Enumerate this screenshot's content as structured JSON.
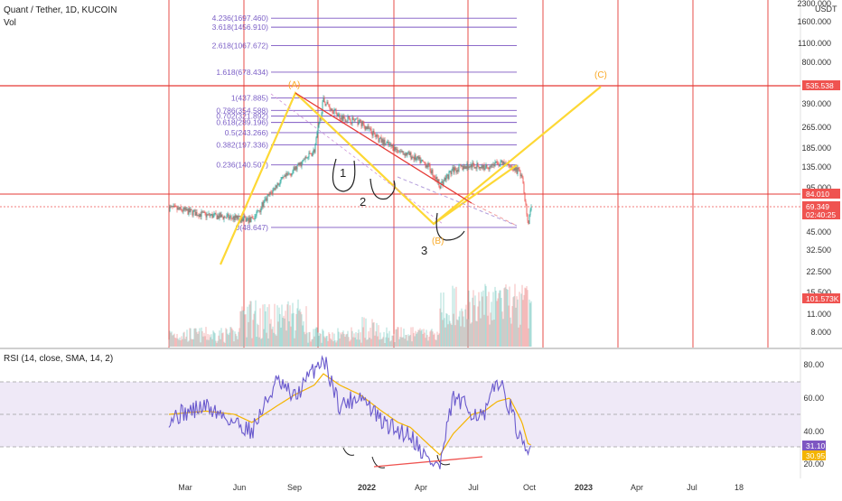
{
  "header": {
    "title": "Quant / Tether, 1D, KUCOIN",
    "vol_label": "Vol",
    "currency": "USDT"
  },
  "rsi_label": "RSI (14, close, SMA, 14, 2)",
  "colors": {
    "grid_red": "#e53935",
    "fib_purple": "#7e57c2",
    "annotation_yellow": "#ffeb3b",
    "label_red": "#ef5350",
    "rsi_line": "#6a5acd",
    "rsi_sma": "#f4b400",
    "rsi_band": "#ede7f6"
  },
  "x_axis_labels": [
    "Mar",
    "Jun",
    "Sep",
    "2022",
    "Apr",
    "Jul",
    "Oct",
    "2023",
    "Apr",
    "Jul",
    "18"
  ],
  "price_axis_labels": [
    "2300.000",
    "1600.000",
    "1100.000",
    "800.000",
    "390.000",
    "265.000",
    "185.000",
    "135.000",
    "95.000",
    "45.000",
    "32.500",
    "22.500",
    "15.500",
    "11.000",
    "8.000"
  ],
  "price_tags": [
    {
      "value": "535.538",
      "color": "#ef5350"
    },
    {
      "value": "84.010",
      "color": "#ef5350"
    },
    {
      "value": "69.349",
      "color": "#ef5350"
    },
    {
      "value": "02:40:25",
      "color": "#ef5350"
    },
    {
      "value": "101.573K",
      "color": "#ef5350"
    }
  ],
  "rsi_axis_labels": [
    "80.00",
    "60.00",
    "40.00",
    "20.00"
  ],
  "rsi_tags": [
    {
      "value": "31.10",
      "color": "#7e57c2"
    },
    {
      "value": "30.95",
      "color": "#f4b400"
    }
  ],
  "fib_levels": [
    {
      "label": "4.236(1697.460)",
      "price": 1697.46
    },
    {
      "label": "3.618(1456.910)",
      "price": 1456.91
    },
    {
      "label": "2.618(1067.672)",
      "price": 1067.672
    },
    {
      "label": "1.618(678.434)",
      "price": 678.434
    },
    {
      "label": "1(437.885)",
      "price": 437.885
    },
    {
      "label": "0.786(354.588)",
      "price": 354.588
    },
    {
      "label": "0.702(321.892)",
      "price": 321.892
    },
    {
      "label": "0.618(289.196)",
      "price": 289.196
    },
    {
      "label": "0.5(243.266)",
      "price": 243.266
    },
    {
      "label": "0.382(197.336)",
      "price": 197.336
    },
    {
      "label": "0.236(140.507)",
      "price": 140.507
    },
    {
      "label": "0(48.647)",
      "price": 48.647
    }
  ],
  "annotations": {
    "wave_a": "(A)",
    "wave_b": "(B)",
    "wave_c": "(C)",
    "mark_1": "1",
    "mark_2": "2",
    "mark_3": "3"
  },
  "chart_data": {
    "type": "candlestick",
    "scale": "log",
    "ylim": [
      7,
      2300
    ],
    "price_series": {
      "dates": [
        "2021-03-01",
        "2021-04-15",
        "2021-05-20",
        "2021-06-10",
        "2021-07-10",
        "2021-08-01",
        "2021-08-25",
        "2021-09-05",
        "2021-09-25",
        "2021-10-20",
        "2021-11-15",
        "2021-12-05",
        "2021-12-20",
        "2022-01-10",
        "2022-01-25",
        "2022-02-10",
        "2022-03-05",
        "2022-03-20",
        "2022-04-05",
        "2022-04-20",
        "2022-05-05",
        "2022-05-12",
        "2022-05-17"
      ],
      "close": [
        68,
        60,
        57,
        55,
        100,
        130,
        180,
        420,
        320,
        290,
        210,
        180,
        165,
        140,
        100,
        130,
        140,
        135,
        145,
        140,
        120,
        52,
        69.349
      ]
    },
    "horizontal_levels": [
      535.538,
      84.01
    ],
    "rsi_series": {
      "dates": [
        "2021-03-01",
        "2021-04-15",
        "2021-05-20",
        "2021-06-10",
        "2021-07-10",
        "2021-08-01",
        "2021-08-25",
        "2021-09-05",
        "2021-09-25",
        "2021-10-20",
        "2021-11-15",
        "2021-12-05",
        "2021-12-20",
        "2022-01-10",
        "2022-01-25",
        "2022-02-10",
        "2022-03-05",
        "2022-03-20",
        "2022-04-05",
        "2022-04-20",
        "2022-05-05",
        "2022-05-12",
        "2022-05-17"
      ],
      "rsi": [
        48,
        55,
        45,
        40,
        70,
        60,
        78,
        85,
        55,
        62,
        45,
        40,
        38,
        22,
        18,
        60,
        52,
        48,
        72,
        55,
        30,
        25,
        31.1
      ],
      "sma": [
        50,
        52,
        50,
        45,
        55,
        62,
        68,
        75,
        68,
        62,
        52,
        45,
        42,
        32,
        25,
        38,
        50,
        52,
        58,
        60,
        45,
        32,
        30.95
      ]
    }
  }
}
